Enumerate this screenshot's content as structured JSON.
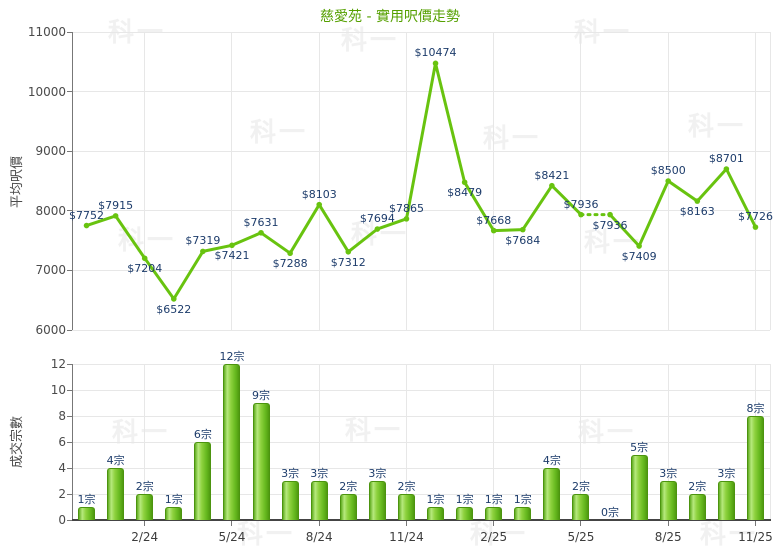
{
  "title": "慈愛苑 - 實用呎價走勢",
  "watermark_text": "科一",
  "colors": {
    "title_green": "#55a000",
    "line_green": "#68c30f",
    "bar_green": "#7dc832",
    "bar_border": "#4c940f",
    "data_label_navy": "#1d3c6b",
    "tick_text": "#4a4a4a",
    "grid_gray": "#e7e7e7",
    "axis_gray": "#777777"
  },
  "chart_data": [
    {
      "type": "line",
      "title": "慈愛苑 - 實用呎價走勢",
      "ylabel": "平均呎價",
      "ylim": [
        6000,
        11000
      ],
      "yticks": [
        6000,
        7000,
        8000,
        9000,
        10000,
        11000
      ],
      "grid": true,
      "x_count": 24,
      "points": [
        {
          "v": 7752,
          "label": "$7752",
          "side": "above"
        },
        {
          "v": 7915,
          "label": "$7915",
          "side": "above"
        },
        {
          "v": 7204,
          "label": "$7204",
          "side": "below"
        },
        {
          "v": 6522,
          "label": "$6522",
          "side": "below"
        },
        {
          "v": 7319,
          "label": "$7319",
          "side": "above"
        },
        {
          "v": 7421,
          "label": "$7421",
          "side": "below"
        },
        {
          "v": 7631,
          "label": "$7631",
          "side": "above"
        },
        {
          "v": 7288,
          "label": "$7288",
          "side": "below"
        },
        {
          "v": 8103,
          "label": "$8103",
          "side": "above"
        },
        {
          "v": 7312,
          "label": "$7312",
          "side": "below"
        },
        {
          "v": 7694,
          "label": "$7694",
          "side": "above"
        },
        {
          "v": 7865,
          "label": "$7865",
          "side": "above"
        },
        {
          "v": 10474,
          "label": "$10474",
          "side": "above"
        },
        {
          "v": 8479,
          "label": "$8479",
          "side": "below"
        },
        {
          "v": 7668,
          "label": "$7668",
          "side": "above"
        },
        {
          "v": 7684,
          "label": "$7684",
          "side": "below"
        },
        {
          "v": 8421,
          "label": "$8421",
          "side": "above"
        },
        {
          "v": 7936,
          "label": "$7936",
          "side": "above"
        },
        {
          "v": 7936,
          "label": "$7936",
          "side": "below"
        },
        {
          "v": 7409,
          "label": "$7409",
          "side": "below"
        },
        {
          "v": 8500,
          "label": "$8500",
          "side": "above"
        },
        {
          "v": 8163,
          "label": "$8163",
          "side": "below"
        },
        {
          "v": 8701,
          "label": "$8701",
          "side": "above"
        },
        {
          "v": 7726,
          "label": "$7726",
          "side": "above"
        }
      ],
      "dotted_segments": [
        [
          17,
          18
        ]
      ],
      "x_gridline_indices": [
        2,
        5,
        8,
        11,
        14,
        17,
        20,
        23
      ]
    },
    {
      "type": "bar",
      "ylabel": "成交宗數",
      "ylim": [
        0,
        12
      ],
      "yticks": [
        0,
        2,
        4,
        6,
        8,
        10,
        12
      ],
      "grid": true,
      "values": [
        1,
        4,
        2,
        1,
        6,
        12,
        9,
        3,
        3,
        2,
        3,
        2,
        1,
        1,
        1,
        1,
        4,
        2,
        0,
        5,
        3,
        2,
        3,
        8
      ],
      "bar_labels": [
        "1宗",
        "4宗",
        "2宗",
        "1宗",
        "6宗",
        "12宗",
        "9宗",
        "3宗",
        "3宗",
        "2宗",
        "3宗",
        "2宗",
        "1宗",
        "1宗",
        "1宗",
        "1宗",
        "4宗",
        "2宗",
        "0宗",
        "5宗",
        "3宗",
        "2宗",
        "3宗",
        "8宗"
      ],
      "x_ticks": [
        {
          "i": 2,
          "label": "2/24"
        },
        {
          "i": 5,
          "label": "5/24"
        },
        {
          "i": 8,
          "label": "8/24"
        },
        {
          "i": 11,
          "label": "11/24"
        },
        {
          "i": 14,
          "label": "2/25"
        },
        {
          "i": 17,
          "label": "5/25"
        },
        {
          "i": 20,
          "label": "8/25"
        },
        {
          "i": 23,
          "label": "11/25"
        }
      ]
    }
  ]
}
